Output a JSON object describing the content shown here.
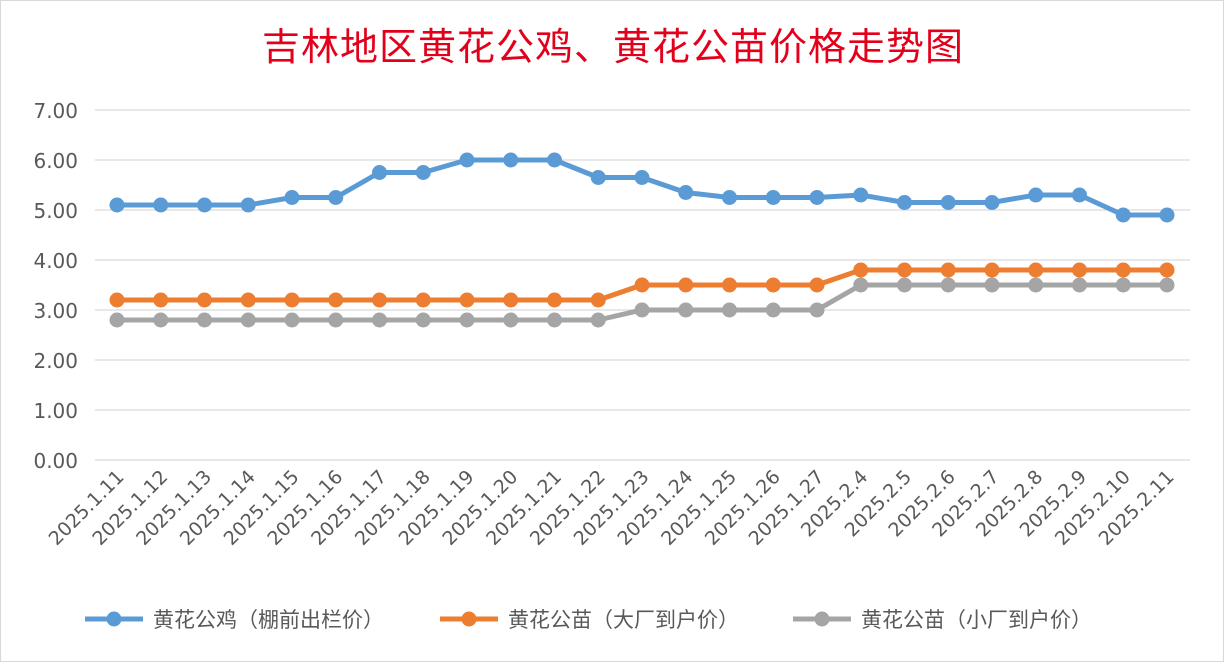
{
  "chart_data": {
    "type": "line",
    "title": "吉林地区黄花公鸡、黄花公苗价格走势图",
    "categories": [
      "2025.1.11",
      "2025.1.12",
      "2025.1.13",
      "2025.1.14",
      "2025.1.15",
      "2025.1.16",
      "2025.1.17",
      "2025.1.18",
      "2025.1.19",
      "2025.1.20",
      "2025.1.21",
      "2025.1.22",
      "2025.1.23",
      "2025.1.24",
      "2025.1.25",
      "2025.1.26",
      "2025.1.27",
      "2025.2.4",
      "2025.2.5",
      "2025.2.6",
      "2025.2.7",
      "2025.2.8",
      "2025.2.9",
      "2025.2.10",
      "2025.2.11"
    ],
    "ylim": [
      0,
      7
    ],
    "yticks": [
      "0.00",
      "1.00",
      "2.00",
      "3.00",
      "4.00",
      "5.00",
      "6.00",
      "7.00"
    ],
    "grid": true,
    "legend_position": "bottom",
    "series": [
      {
        "name": "黄花公鸡（棚前出栏价）",
        "color": "#5b9bd5",
        "values": [
          5.1,
          5.1,
          5.1,
          5.1,
          5.25,
          5.25,
          5.75,
          5.75,
          6.0,
          6.0,
          6.0,
          5.65,
          5.65,
          5.35,
          5.25,
          5.25,
          5.25,
          5.3,
          5.15,
          5.15,
          5.15,
          5.3,
          5.3,
          4.9,
          4.9
        ]
      },
      {
        "name": "黄花公苗（大厂到户价）",
        "color": "#ed7d31",
        "values": [
          3.2,
          3.2,
          3.2,
          3.2,
          3.2,
          3.2,
          3.2,
          3.2,
          3.2,
          3.2,
          3.2,
          3.2,
          3.5,
          3.5,
          3.5,
          3.5,
          3.5,
          3.8,
          3.8,
          3.8,
          3.8,
          3.8,
          3.8,
          3.8,
          3.8
        ]
      },
      {
        "name": "黄花公苗（小厂到户价）",
        "color": "#a5a5a5",
        "values": [
          2.8,
          2.8,
          2.8,
          2.8,
          2.8,
          2.8,
          2.8,
          2.8,
          2.8,
          2.8,
          2.8,
          2.8,
          3.0,
          3.0,
          3.0,
          3.0,
          3.0,
          3.5,
          3.5,
          3.5,
          3.5,
          3.5,
          3.5,
          3.5,
          3.5
        ]
      }
    ]
  }
}
